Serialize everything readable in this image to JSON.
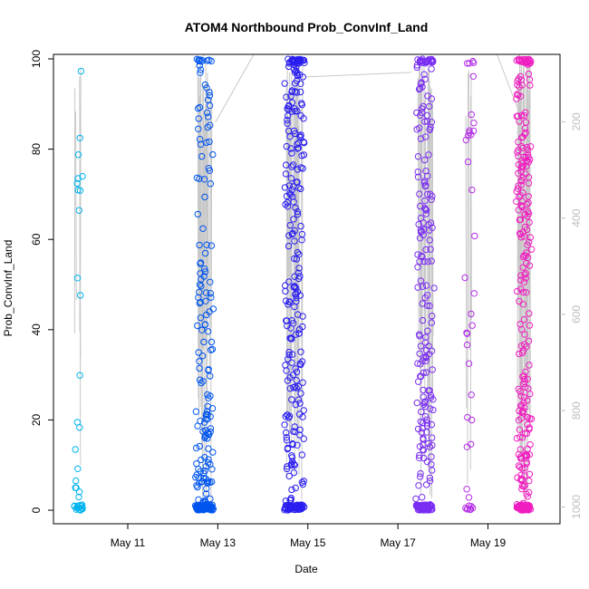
{
  "chart_data": {
    "type": "scatter",
    "title": "ATOM4 Northbound Prob_ConvInf_Land",
    "xlabel": "Date",
    "ylabel": "Prob_ConvInf_Land",
    "xlim": [
      9.35,
      20.6
    ],
    "ylim": [
      -3,
      101
    ],
    "x_ticks": [
      {
        "label": "May 11",
        "value": 11
      },
      {
        "label": "May 13",
        "value": 13
      },
      {
        "label": "May 15",
        "value": 15
      },
      {
        "label": "May 17",
        "value": 17
      },
      {
        "label": "May 19",
        "value": 19
      }
    ],
    "y_ticks": [
      0,
      20,
      40,
      60,
      80,
      100
    ],
    "y2_ticks": [
      200,
      400,
      600,
      800,
      1000
    ],
    "y2lim": [
      1035,
      60
    ],
    "grid": false,
    "marker": "open-circle",
    "point_colors": [
      "#00b4ee",
      "#0055ee",
      "#2a1ef0",
      "#7a2ef2",
      "#b52ee8",
      "#f01ec0"
    ],
    "line_color": "#c8c8c8",
    "clusters": [
      {
        "center": 9.9,
        "spread": 0.12,
        "high_count": 12,
        "low_count": 26,
        "color": "#00b4ee"
      },
      {
        "center": 12.7,
        "spread": 0.22,
        "high_count": 95,
        "low_count": 140,
        "color": "#0055ee"
      },
      {
        "center": 14.7,
        "spread": 0.24,
        "high_count": 200,
        "low_count": 100,
        "color": "#2a1ef0"
      },
      {
        "center": 17.6,
        "spread": 0.22,
        "high_count": 150,
        "low_count": 110,
        "color": "#7a2ef2"
      },
      {
        "center": 18.6,
        "spread": 0.12,
        "high_count": 26,
        "low_count": 14,
        "color": "#b52ee8"
      },
      {
        "center": 19.8,
        "spread": 0.18,
        "high_count": 175,
        "low_count": 110,
        "color": "#f01ec0"
      }
    ]
  }
}
